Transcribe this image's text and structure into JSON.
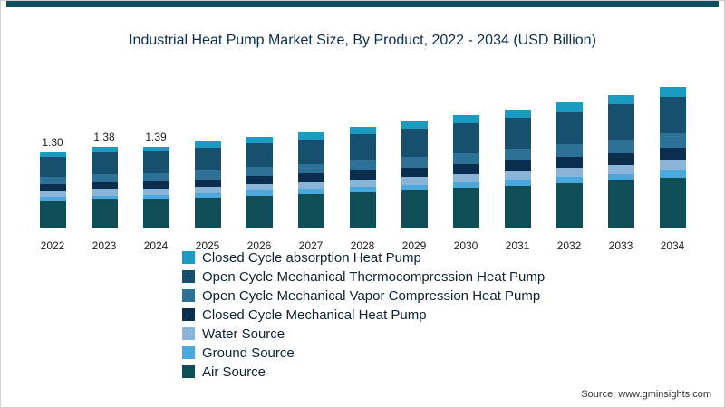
{
  "title": "Industrial Heat Pump Market Size, By Product, 2022 - 2034 (USD Billion)",
  "source": "Source: www.gminsights.com",
  "accent_color": "#0d4f5c",
  "chart_data": {
    "type": "bar",
    "stacked": true,
    "title": "Industrial Heat Pump Market Size, By Product, 2022 - 2034 (USD Billion)",
    "xlabel": "",
    "ylabel": "USD Billion",
    "ylim": [
      0,
      2.5
    ],
    "grid": false,
    "legend_position": "bottom-left",
    "categories": [
      "2022",
      "2023",
      "2024",
      "2025",
      "2026",
      "2027",
      "2028",
      "2029",
      "2030",
      "2031",
      "2032",
      "2033",
      "2034"
    ],
    "bar_labels": [
      "1.30",
      "1.38",
      "1.39",
      null,
      null,
      null,
      null,
      null,
      null,
      null,
      null,
      null,
      null
    ],
    "totals": [
      1.3,
      1.38,
      1.39,
      1.48,
      1.55,
      1.63,
      1.72,
      1.82,
      1.92,
      2.02,
      2.14,
      2.26,
      2.4
    ],
    "series": [
      {
        "name": "Air Source",
        "color": "#0f4d57",
        "values": [
          0.47,
          0.49,
          0.5,
          0.53,
          0.56,
          0.59,
          0.62,
          0.65,
          0.69,
          0.73,
          0.77,
          0.81,
          0.86
        ]
      },
      {
        "name": "Ground Source",
        "color": "#4aa8dc",
        "values": [
          0.07,
          0.07,
          0.07,
          0.07,
          0.08,
          0.08,
          0.09,
          0.09,
          0.1,
          0.1,
          0.11,
          0.11,
          0.12
        ]
      },
      {
        "name": "Water Source",
        "color": "#8ab4d8",
        "values": [
          0.09,
          0.1,
          0.1,
          0.1,
          0.11,
          0.11,
          0.12,
          0.13,
          0.13,
          0.14,
          0.15,
          0.16,
          0.17
        ]
      },
      {
        "name": "Closed Cycle Mechanical Heat Pump",
        "color": "#0b2e4f",
        "values": [
          0.12,
          0.12,
          0.13,
          0.13,
          0.14,
          0.15,
          0.15,
          0.16,
          0.17,
          0.18,
          0.19,
          0.2,
          0.22
        ]
      },
      {
        "name": "Open Cycle Mechanical Vapor Compression Heat Pump",
        "color": "#2e7196",
        "values": [
          0.13,
          0.14,
          0.14,
          0.15,
          0.16,
          0.16,
          0.17,
          0.18,
          0.19,
          0.2,
          0.21,
          0.23,
          0.24
        ]
      },
      {
        "name": "Open Cycle Mechanical Thermocompression Heat Pump",
        "color": "#174f6e",
        "values": [
          0.34,
          0.37,
          0.36,
          0.38,
          0.4,
          0.42,
          0.45,
          0.48,
          0.5,
          0.53,
          0.56,
          0.59,
          0.62
        ]
      },
      {
        "name": "Closed Cycle absorption Heat Pump",
        "color": "#1a9bbf",
        "values": [
          0.08,
          0.09,
          0.09,
          0.12,
          0.1,
          0.12,
          0.12,
          0.13,
          0.14,
          0.14,
          0.15,
          0.16,
          0.17
        ]
      }
    ]
  }
}
